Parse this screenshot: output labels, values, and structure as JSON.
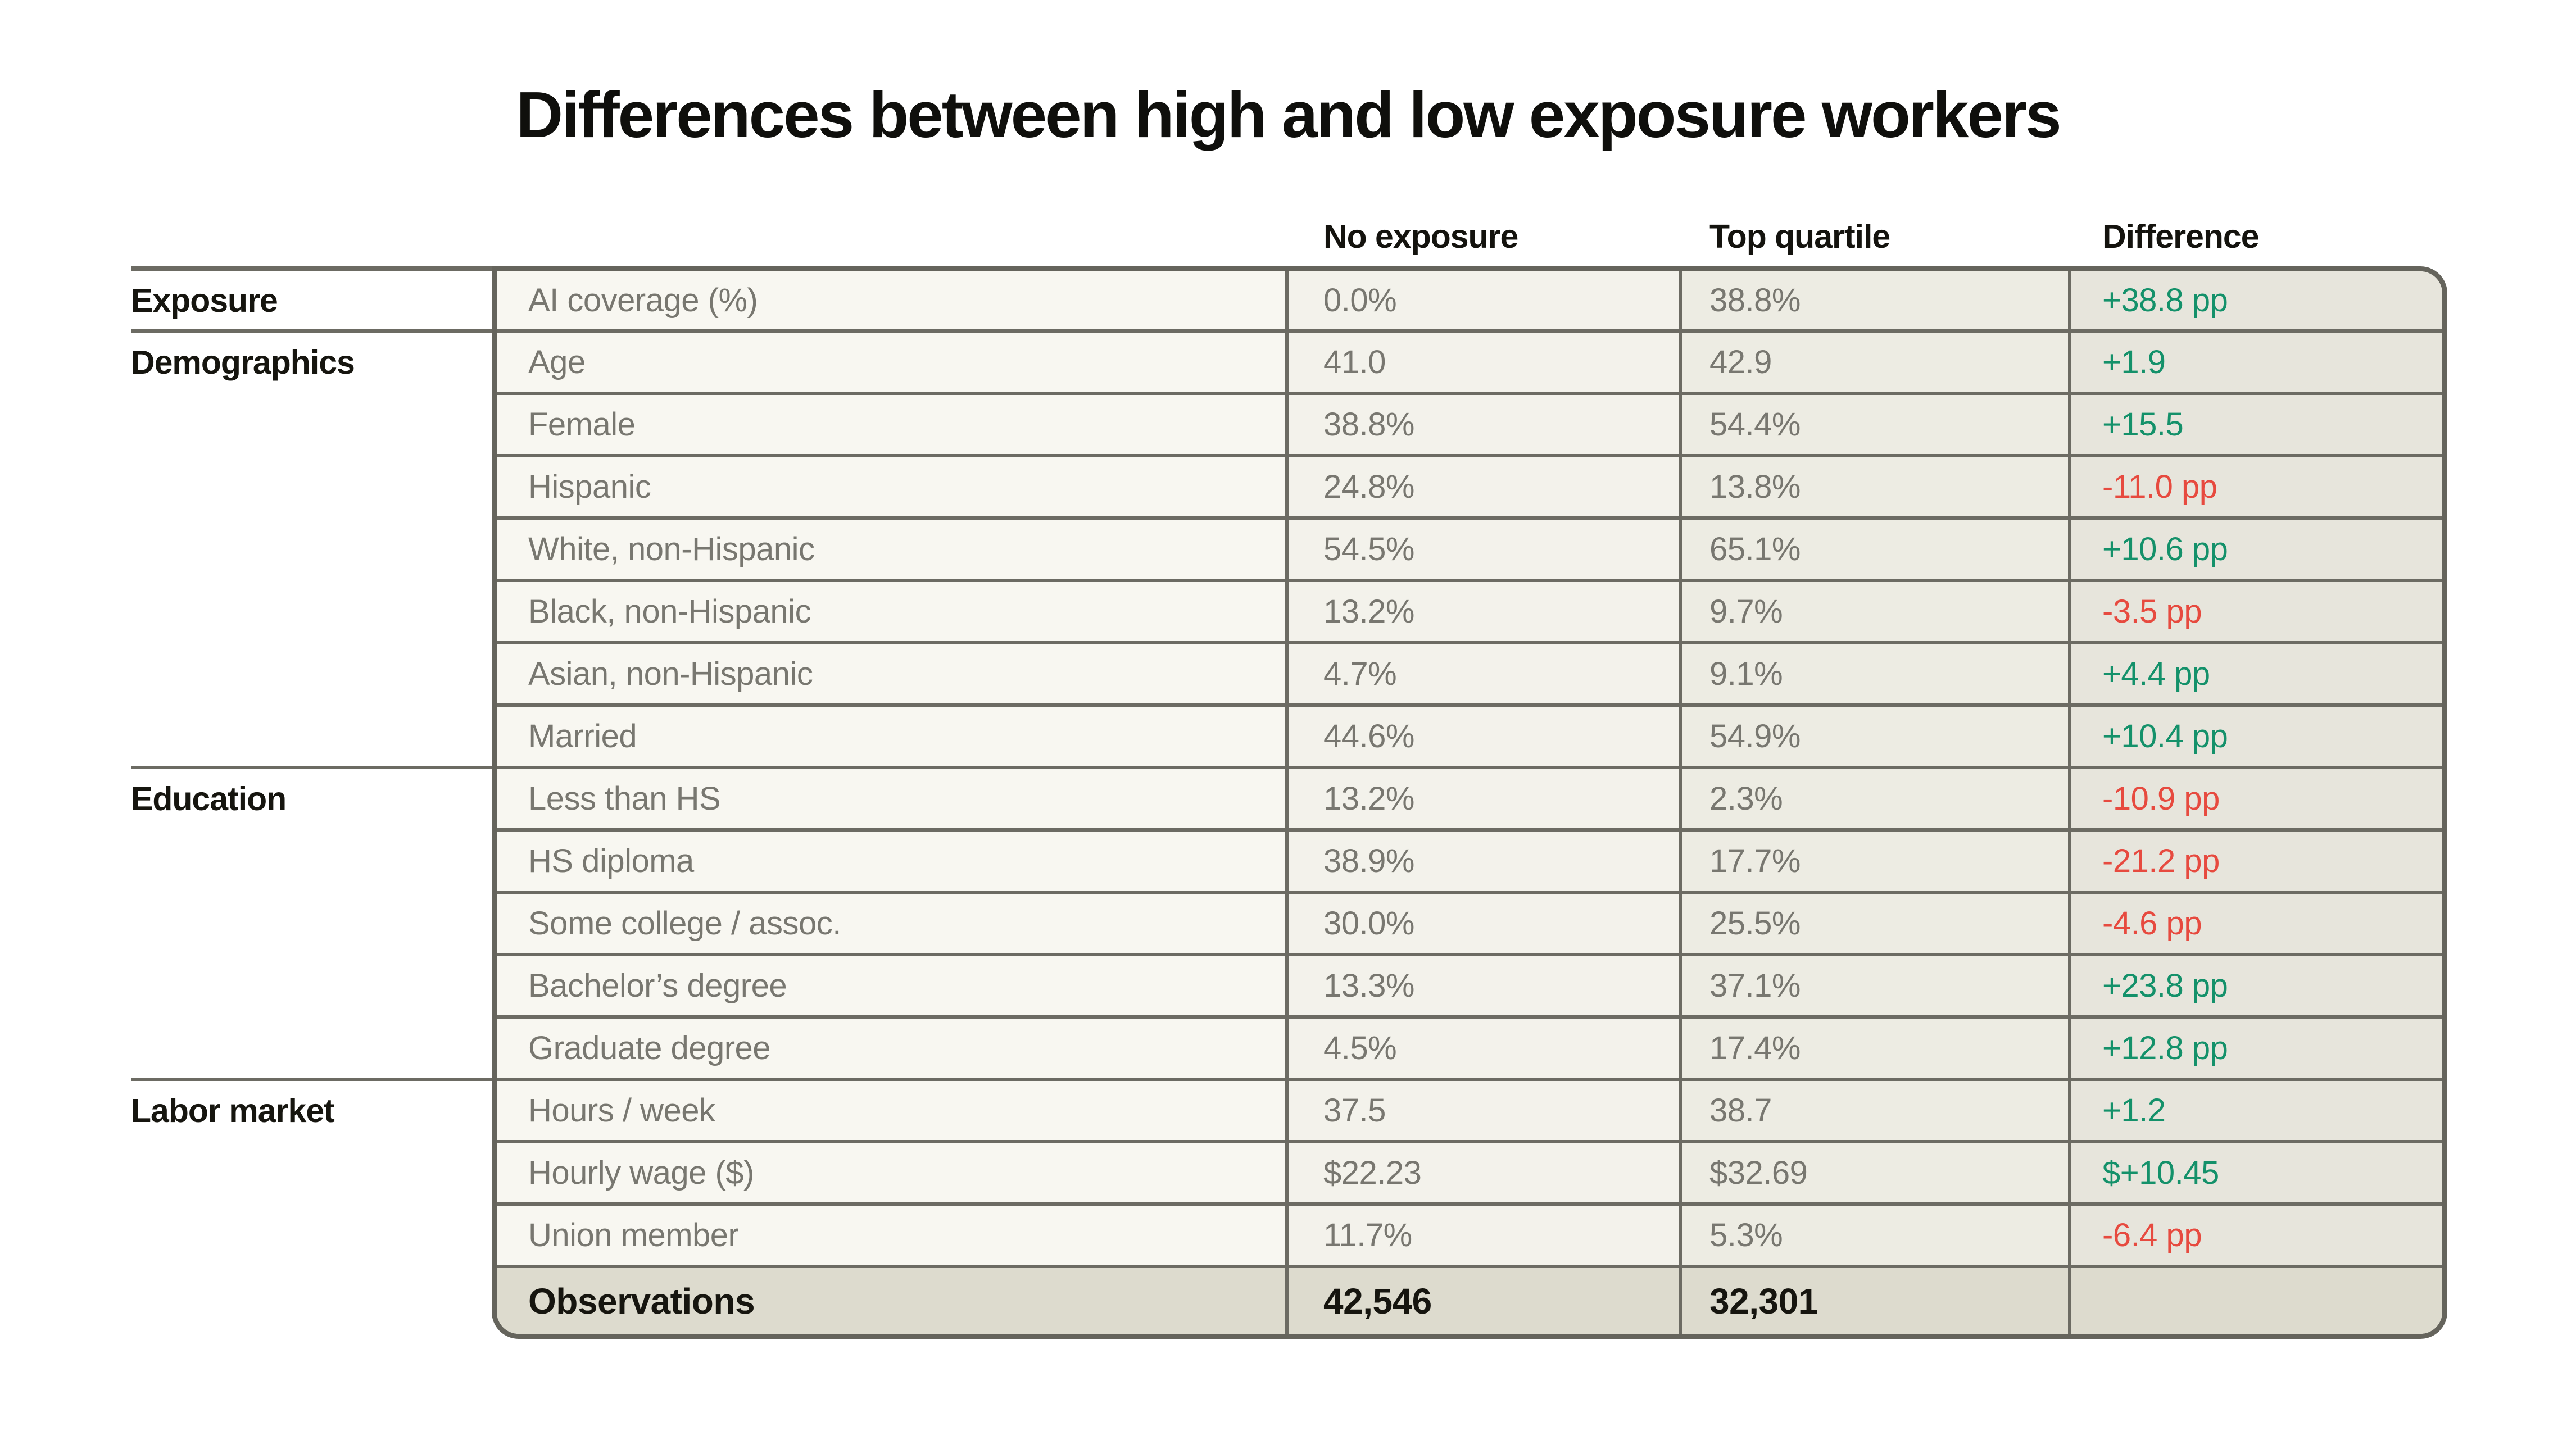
{
  "title": "Differences between high and low exposure workers",
  "columns": [
    "No exposure",
    "Top quartile",
    "Difference"
  ],
  "colors": {
    "positive": "#14916a",
    "negative": "#e74a3f",
    "muted_text": "#787770",
    "dark_text": "#16150f",
    "border": "#6c6b63",
    "outer_border": "#65645c",
    "bg_label_col": "#f8f7f1",
    "bg_no_exposure_col": "#f3f2eb",
    "bg_top_quartile_col": "#edece3",
    "bg_difference_col": "#e7e5dc",
    "bg_footer_row": "#dddbce"
  },
  "chart_data": {
    "type": "table",
    "title": "Differences between high and low exposure workers",
    "columns": [
      "No exposure",
      "Top quartile",
      "Difference"
    ],
    "groups": [
      {
        "name": "Exposure",
        "rows": [
          {
            "label": "AI coverage (%)",
            "no_exposure": "0.0%",
            "top_quartile": "38.8%",
            "difference": "+38.8 pp",
            "trend": "positive"
          }
        ]
      },
      {
        "name": "Demographics",
        "rows": [
          {
            "label": "Age",
            "no_exposure": "41.0",
            "top_quartile": "42.9",
            "difference": "+1.9",
            "trend": "positive"
          },
          {
            "label": "Female",
            "no_exposure": "38.8%",
            "top_quartile": "54.4%",
            "difference": "+15.5",
            "trend": "positive"
          },
          {
            "label": "Hispanic",
            "no_exposure": "24.8%",
            "top_quartile": "13.8%",
            "difference": "-11.0 pp",
            "trend": "negative"
          },
          {
            "label": "White, non-Hispanic",
            "no_exposure": "54.5%",
            "top_quartile": "65.1%",
            "difference": "+10.6 pp",
            "trend": "positive"
          },
          {
            "label": "Black, non-Hispanic",
            "no_exposure": "13.2%",
            "top_quartile": "9.7%",
            "difference": "-3.5 pp",
            "trend": "negative"
          },
          {
            "label": "Asian, non-Hispanic",
            "no_exposure": "4.7%",
            "top_quartile": "9.1%",
            "difference": "+4.4 pp",
            "trend": "positive"
          },
          {
            "label": "Married",
            "no_exposure": "44.6%",
            "top_quartile": "54.9%",
            "difference": "+10.4 pp",
            "trend": "positive"
          }
        ]
      },
      {
        "name": "Education",
        "rows": [
          {
            "label": "Less than HS",
            "no_exposure": "13.2%",
            "top_quartile": "2.3%",
            "difference": "-10.9 pp",
            "trend": "negative"
          },
          {
            "label": "HS diploma",
            "no_exposure": "38.9%",
            "top_quartile": "17.7%",
            "difference": "-21.2 pp",
            "trend": "negative"
          },
          {
            "label": "Some college / assoc.",
            "no_exposure": "30.0%",
            "top_quartile": "25.5%",
            "difference": "-4.6 pp",
            "trend": "negative"
          },
          {
            "label": "Bachelor’s degree",
            "no_exposure": "13.3%",
            "top_quartile": "37.1%",
            "difference": "+23.8 pp",
            "trend": "positive"
          },
          {
            "label": "Graduate degree",
            "no_exposure": "4.5%",
            "top_quartile": "17.4%",
            "difference": "+12.8 pp",
            "trend": "positive"
          }
        ]
      },
      {
        "name": "Labor market",
        "rows": [
          {
            "label": "Hours / week",
            "no_exposure": "37.5",
            "top_quartile": "38.7",
            "difference": "+1.2",
            "trend": "positive"
          },
          {
            "label": "Hourly wage ($)",
            "no_exposure": "$22.23",
            "top_quartile": "$32.69",
            "difference": "$+10.45",
            "trend": "positive"
          },
          {
            "label": "Union member",
            "no_exposure": "11.7%",
            "top_quartile": "5.3%",
            "difference": "-6.4 pp",
            "trend": "negative"
          }
        ]
      }
    ],
    "footer": {
      "label": "Observations",
      "no_exposure": "42,546",
      "top_quartile": "32,301",
      "difference": ""
    }
  }
}
